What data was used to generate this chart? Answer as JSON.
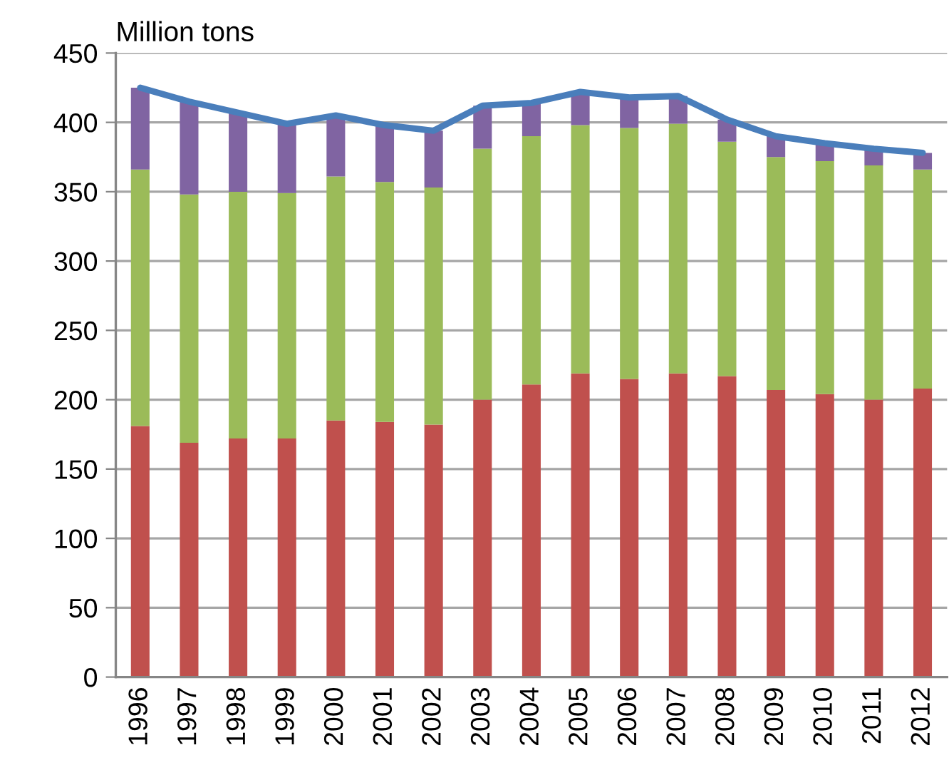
{
  "chart_data": {
    "type": "bar",
    "title": "Million tons",
    "stacked": true,
    "categories": [
      "1996",
      "1997",
      "1998",
      "1999",
      "2000",
      "2001",
      "2002",
      "2003",
      "2004",
      "2005",
      "2006",
      "2007",
      "2008",
      "2009",
      "2010",
      "2011",
      "2012"
    ],
    "series": [
      {
        "color": "#c0504d",
        "values": [
          181,
          169,
          172,
          172,
          185,
          184,
          182,
          200,
          211,
          219,
          215,
          219,
          217,
          207,
          204,
          200,
          208
        ]
      },
      {
        "color": "#9bbb59",
        "values": [
          185,
          179,
          178,
          177,
          176,
          173,
          171,
          181,
          179,
          179,
          181,
          180,
          169,
          168,
          168,
          169,
          158
        ]
      },
      {
        "color": "#8064a2",
        "values": [
          59,
          67,
          57,
          50,
          44,
          41,
          41,
          31,
          24,
          24,
          22,
          20,
          16,
          15,
          13,
          12,
          12
        ]
      },
      {
        "type": "line",
        "color": "#4a7ebb",
        "line_style": "solid",
        "values": [
          425,
          415,
          407,
          399,
          405,
          398,
          394,
          412,
          414,
          422,
          418,
          419,
          402,
          390,
          385,
          381,
          378
        ]
      }
    ],
    "ylim": [
      0,
      450
    ],
    "yticks": [
      0,
      50,
      100,
      150,
      200,
      250,
      300,
      350,
      400,
      450
    ],
    "grid": "y"
  }
}
